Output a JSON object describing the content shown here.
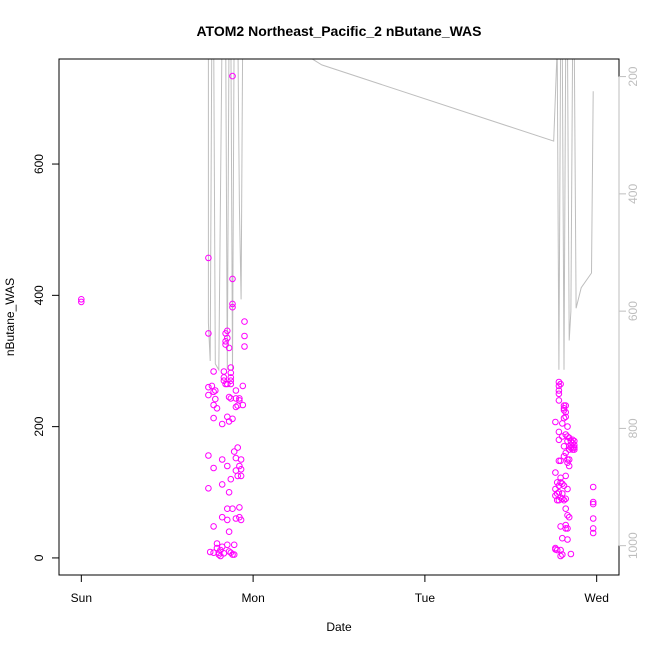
{
  "chart_data": {
    "type": "scatter",
    "title": "ATOM2 Northeast_Pacific_2 nButane_WAS",
    "xlabel": "Date",
    "ylabel": "nButane_WAS",
    "x_unit": "days since Sun 00:00",
    "xlim": [
      -0.13,
      3.13
    ],
    "ylim": [
      -26,
      760
    ],
    "x_ticks": [
      {
        "value": 0,
        "label": "Sun"
      },
      {
        "value": 1,
        "label": "Mon"
      },
      {
        "value": 2,
        "label": "Tue"
      },
      {
        "value": 3,
        "label": "Wed"
      }
    ],
    "y_ticks": [
      0,
      200,
      400,
      600
    ],
    "secondary_axis": {
      "label": "",
      "reversed": true,
      "lim": [
        1050,
        170
      ],
      "ticks": [
        200,
        400,
        600,
        800,
        1000
      ],
      "color": "#bebebe"
    },
    "grid": false,
    "legend": "none",
    "colors": {
      "points": "#ff00ff",
      "line": "#bebebe",
      "axis": "#000000",
      "secondary_axis": "#bebebe"
    },
    "series": [
      {
        "name": "",
        "kind": "points",
        "axis": "left",
        "color": "#ff00ff",
        "points": [
          [
            0.0,
            394
          ],
          [
            0.0,
            390
          ],
          [
            0.74,
            457
          ],
          [
            0.74,
            342
          ],
          [
            0.74,
            260
          ],
          [
            0.74,
            248
          ],
          [
            0.74,
            156
          ],
          [
            0.74,
            106
          ],
          [
            0.75,
            9
          ],
          [
            0.76,
            262
          ],
          [
            0.77,
            284
          ],
          [
            0.77,
            253
          ],
          [
            0.77,
            233
          ],
          [
            0.77,
            213
          ],
          [
            0.77,
            137
          ],
          [
            0.77,
            48
          ],
          [
            0.77,
            8
          ],
          [
            0.78,
            255
          ],
          [
            0.78,
            242
          ],
          [
            0.79,
            228
          ],
          [
            0.79,
            22
          ],
          [
            0.79,
            15
          ],
          [
            0.8,
            5
          ],
          [
            0.8,
            8
          ],
          [
            0.81,
            3
          ],
          [
            0.81,
            12
          ],
          [
            0.82,
            204
          ],
          [
            0.82,
            150
          ],
          [
            0.82,
            112
          ],
          [
            0.82,
            62
          ],
          [
            0.82,
            17
          ],
          [
            0.83,
            270
          ],
          [
            0.83,
            284
          ],
          [
            0.83,
            275
          ],
          [
            0.83,
            7
          ],
          [
            0.84,
            265
          ],
          [
            0.84,
            342
          ],
          [
            0.84,
            330
          ],
          [
            0.84,
            325
          ],
          [
            0.85,
            335
          ],
          [
            0.85,
            346
          ],
          [
            0.85,
            265
          ],
          [
            0.85,
            215
          ],
          [
            0.85,
            140
          ],
          [
            0.85,
            75
          ],
          [
            0.85,
            58
          ],
          [
            0.85,
            20
          ],
          [
            0.86,
            320
          ],
          [
            0.86,
            245
          ],
          [
            0.86,
            208
          ],
          [
            0.86,
            100
          ],
          [
            0.86,
            40
          ],
          [
            0.86,
            10
          ],
          [
            0.87,
            282
          ],
          [
            0.87,
            275
          ],
          [
            0.87,
            290
          ],
          [
            0.87,
            270
          ],
          [
            0.87,
            265
          ],
          [
            0.87,
            243
          ],
          [
            0.87,
            120
          ],
          [
            0.87,
            8
          ],
          [
            0.88,
            734
          ],
          [
            0.88,
            425
          ],
          [
            0.88,
            387
          ],
          [
            0.88,
            382
          ],
          [
            0.88,
            212
          ],
          [
            0.88,
            75
          ],
          [
            0.88,
            5
          ],
          [
            0.89,
            162
          ],
          [
            0.89,
            20
          ],
          [
            0.89,
            5
          ],
          [
            0.9,
            255
          ],
          [
            0.9,
            243
          ],
          [
            0.9,
            230
          ],
          [
            0.9,
            152
          ],
          [
            0.9,
            133
          ],
          [
            0.9,
            60
          ],
          [
            0.91,
            232
          ],
          [
            0.91,
            168
          ],
          [
            0.91,
            125
          ],
          [
            0.92,
            243
          ],
          [
            0.92,
            240
          ],
          [
            0.92,
            140
          ],
          [
            0.92,
            77
          ],
          [
            0.92,
            62
          ],
          [
            0.93,
            135
          ],
          [
            0.93,
            150
          ],
          [
            0.93,
            125
          ],
          [
            0.93,
            58
          ],
          [
            0.94,
            233
          ],
          [
            0.94,
            262
          ],
          [
            0.95,
            360
          ],
          [
            0.95,
            338
          ],
          [
            0.95,
            322
          ],
          [
            2.76,
            207
          ],
          [
            2.76,
            130
          ],
          [
            2.76,
            105
          ],
          [
            2.76,
            95
          ],
          [
            2.76,
            15
          ],
          [
            2.76,
            13
          ],
          [
            2.77,
            115
          ],
          [
            2.77,
            98
          ],
          [
            2.77,
            88
          ],
          [
            2.77,
            12
          ],
          [
            2.78,
            268
          ],
          [
            2.78,
            262
          ],
          [
            2.78,
            255
          ],
          [
            2.78,
            250
          ],
          [
            2.78,
            240
          ],
          [
            2.78,
            192
          ],
          [
            2.78,
            180
          ],
          [
            2.78,
            148
          ],
          [
            2.78,
            110
          ],
          [
            2.78,
            100
          ],
          [
            2.78,
            88
          ],
          [
            2.79,
            265
          ],
          [
            2.79,
            148
          ],
          [
            2.79,
            122
          ],
          [
            2.79,
            115
          ],
          [
            2.79,
            92
          ],
          [
            2.79,
            48
          ],
          [
            2.79,
            12
          ],
          [
            2.79,
            3
          ],
          [
            2.8,
            205
          ],
          [
            2.8,
            185
          ],
          [
            2.8,
            113
          ],
          [
            2.8,
            98
          ],
          [
            2.8,
            90
          ],
          [
            2.8,
            30
          ],
          [
            2.8,
            5
          ],
          [
            2.81,
            232
          ],
          [
            2.81,
            228
          ],
          [
            2.81,
            225
          ],
          [
            2.81,
            213
          ],
          [
            2.81,
            170
          ],
          [
            2.81,
            155
          ],
          [
            2.81,
            110
          ],
          [
            2.81,
            88
          ],
          [
            2.82,
            232
          ],
          [
            2.82,
            222
          ],
          [
            2.82,
            215
          ],
          [
            2.82,
            188
          ],
          [
            2.82,
            160
          ],
          [
            2.82,
            125
          ],
          [
            2.82,
            90
          ],
          [
            2.82,
            75
          ],
          [
            2.82,
            50
          ],
          [
            2.82,
            45
          ],
          [
            2.83,
            200
          ],
          [
            2.83,
            185
          ],
          [
            2.83,
            178
          ],
          [
            2.83,
            150
          ],
          [
            2.83,
            145
          ],
          [
            2.83,
            105
          ],
          [
            2.83,
            65
          ],
          [
            2.83,
            45
          ],
          [
            2.83,
            28
          ],
          [
            2.84,
            183
          ],
          [
            2.84,
            170
          ],
          [
            2.84,
            165
          ],
          [
            2.84,
            150
          ],
          [
            2.84,
            140
          ],
          [
            2.84,
            62
          ],
          [
            2.85,
            178
          ],
          [
            2.85,
            172
          ],
          [
            2.85,
            168
          ],
          [
            2.85,
            6
          ],
          [
            2.86,
            180
          ],
          [
            2.86,
            175
          ],
          [
            2.86,
            165
          ],
          [
            2.86,
            168
          ],
          [
            2.87,
            178
          ],
          [
            2.87,
            172
          ],
          [
            2.87,
            168
          ],
          [
            2.87,
            165
          ],
          [
            2.98,
            108
          ],
          [
            2.98,
            85
          ],
          [
            2.98,
            82
          ],
          [
            2.98,
            60
          ],
          [
            2.98,
            45
          ],
          [
            2.98,
            38
          ]
        ]
      },
      {
        "name": "",
        "kind": "line",
        "axis": "right",
        "color": "#bebebe",
        "points": [
          [
            0.74,
            100
          ],
          [
            0.74,
            620
          ],
          [
            0.75,
            685
          ],
          [
            0.76,
            100
          ],
          [
            0.77,
            100
          ],
          [
            0.78,
            690
          ],
          [
            0.8,
            700
          ],
          [
            0.82,
            100
          ],
          [
            0.84,
            100
          ],
          [
            0.85,
            700
          ],
          [
            0.86,
            100
          ],
          [
            0.87,
            100
          ],
          [
            0.88,
            700
          ],
          [
            0.89,
            100
          ],
          [
            0.9,
            100
          ],
          [
            0.91,
            100
          ],
          [
            0.92,
            420
          ],
          [
            0.93,
            580
          ],
          [
            0.94,
            100
          ],
          [
            0.95,
            100
          ],
          [
            0.96,
            100
          ],
          [
            1.4,
            180
          ],
          [
            2.75,
            310
          ],
          [
            2.77,
            150
          ],
          [
            2.78,
            700
          ],
          [
            2.79,
            150
          ],
          [
            2.8,
            150
          ],
          [
            2.81,
            700
          ],
          [
            2.82,
            150
          ],
          [
            2.83,
            150
          ],
          [
            2.84,
            650
          ],
          [
            2.85,
            600
          ],
          [
            2.86,
            150
          ],
          [
            2.87,
            150
          ],
          [
            2.88,
            595
          ],
          [
            2.91,
            560
          ],
          [
            2.97,
            535
          ],
          [
            2.98,
            225
          ]
        ]
      }
    ]
  }
}
